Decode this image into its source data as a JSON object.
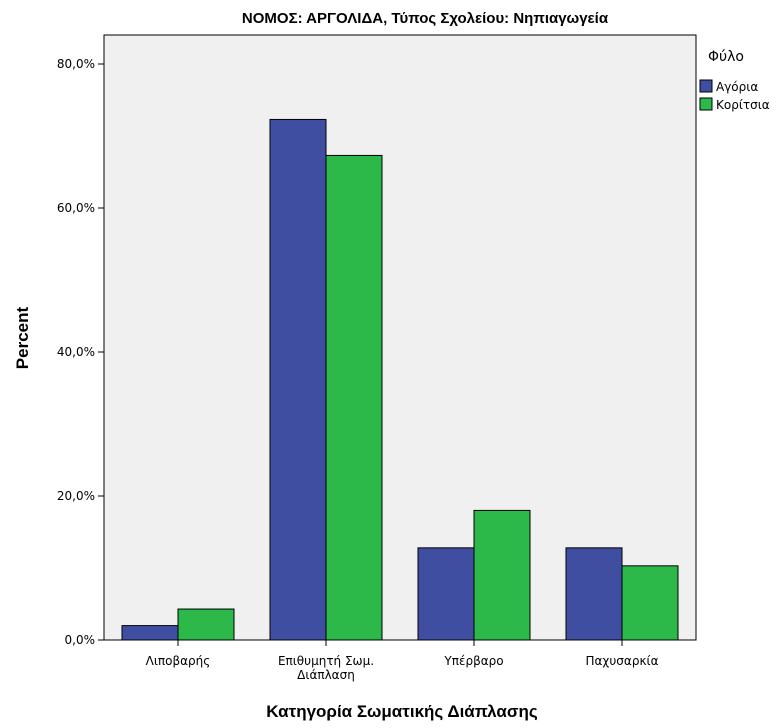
{
  "chart_data": {
    "type": "bar",
    "title": "ΝΟΜΟΣ: ΑΡΓΟΛΙΔΑ, Τύπος Σχολείου: Νηπιαγωγεία",
    "xlabel": "Κατηγορία Σωματικής Διάπλασης",
    "ylabel": "Percent",
    "categories": [
      [
        "Λιποβαρής"
      ],
      [
        "Επιθυμητή Σωμ.",
        "Διάπλαση"
      ],
      [
        "Υπέρβαρο"
      ],
      [
        "Παχυσαρκία"
      ]
    ],
    "series": [
      {
        "name": "Αγόρια",
        "values": [
          2.0,
          72.3,
          12.8,
          12.8
        ]
      },
      {
        "name": "Κορίτσια",
        "values": [
          4.3,
          67.3,
          18.0,
          10.3
        ]
      }
    ],
    "ylim": [
      0,
      80
    ],
    "y_ticks": [
      "0,0%",
      "20,0%",
      "40,0%",
      "60,0%",
      "80,0%"
    ],
    "grid": false,
    "legend": {
      "title": "Φύλο",
      "placement": "top-right"
    },
    "colors": {
      "series": [
        "#3f4ea1",
        "#2db84a"
      ],
      "plot_background": "#f0f0f0",
      "bar_outline": "#000000"
    }
  }
}
